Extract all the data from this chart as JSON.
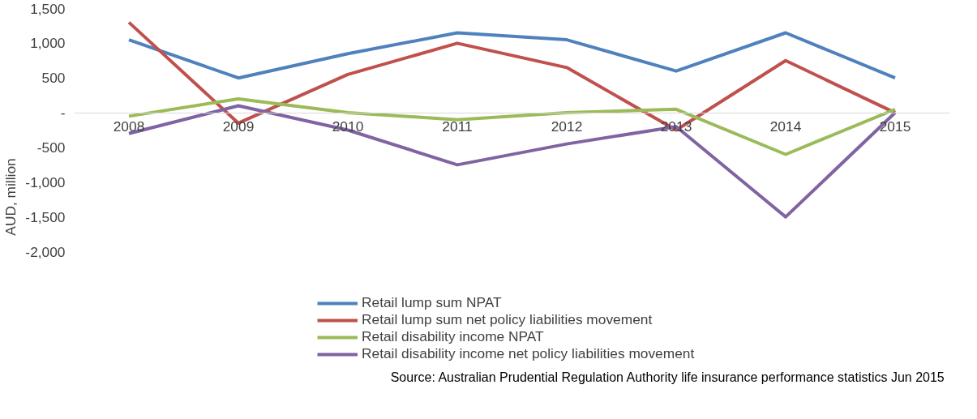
{
  "chart_data": {
    "type": "line",
    "ylabel": "AUD, million",
    "categories": [
      "2008",
      "2009",
      "2010",
      "2011",
      "2012",
      "2013",
      "2014",
      "2015"
    ],
    "series": [
      {
        "name": "Retail lump sum NPAT",
        "color": "#4f81bd",
        "values": [
          1050,
          500,
          850,
          1150,
          1050,
          600,
          1150,
          500
        ]
      },
      {
        "name": "Retail lump sum net policy liabilities movement",
        "color": "#c0504d",
        "values": [
          1300,
          -150,
          550,
          1000,
          650,
          -250,
          750,
          0
        ]
      },
      {
        "name": "Retail disability income NPAT",
        "color": "#9bbb59",
        "values": [
          -50,
          200,
          0,
          -100,
          0,
          50,
          -600,
          50
        ]
      },
      {
        "name": "Retail disability income net policy liabilities movement",
        "color": "#8064a2",
        "values": [
          -300,
          100,
          -250,
          -750,
          -450,
          -200,
          -1500,
          0
        ]
      }
    ],
    "ylim": [
      -2000,
      1500
    ],
    "yticks": [
      {
        "value": 1500,
        "label": "1,500"
      },
      {
        "value": 1000,
        "label": "1,000"
      },
      500,
      {
        "value": 0,
        "label": "-"
      },
      -500,
      {
        "value": -1000,
        "label": "-1,000"
      },
      {
        "value": -1500,
        "label": "-1,500"
      },
      {
        "value": -2000,
        "label": "-2,000"
      }
    ],
    "grid": false,
    "legend": "bottom",
    "marker": "none",
    "line_style": "solid",
    "annotations": [
      "Source: Australian Prudential Regulation Authority life insurance performance statistics Jun 2015"
    ]
  }
}
